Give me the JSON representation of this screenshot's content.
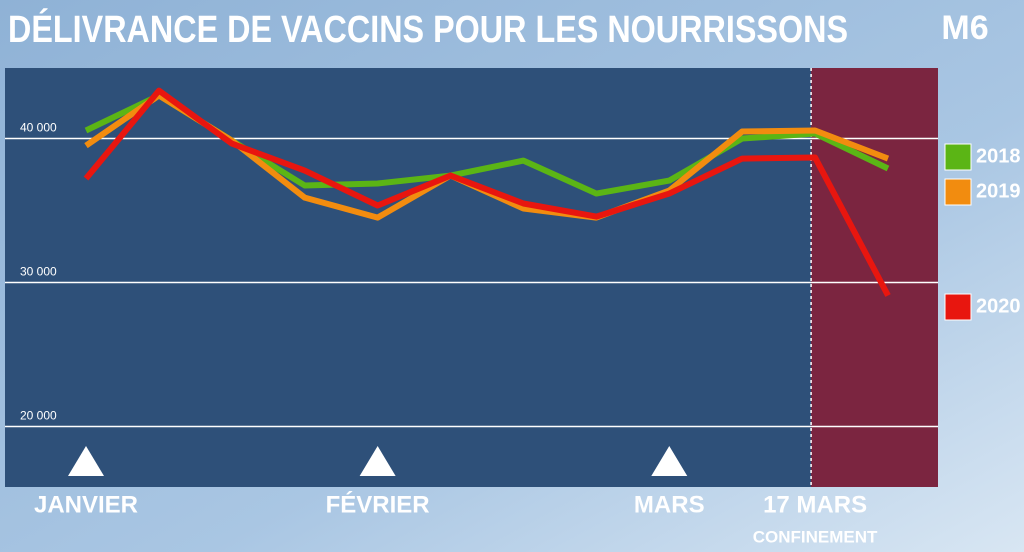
{
  "chart_data": {
    "type": "line",
    "title": "DÉLIVRANCE DE VACCINS POUR LES NOURRISSONS",
    "logo": "M6",
    "categories": [
      "JANVIER",
      null,
      null,
      null,
      "FÉVRIER",
      null,
      null,
      null,
      "MARS",
      null,
      "17 MARS",
      null
    ],
    "series": [
      {
        "name": "2018",
        "color": "#5bb515",
        "values": [
          40560,
          42990,
          39860,
          36740,
          36880,
          37430,
          38470,
          36180,
          37080,
          40000,
          40350,
          37920
        ]
      },
      {
        "name": "2019",
        "color": "#f28c0f",
        "values": [
          39510,
          42990,
          39860,
          35900,
          34510,
          37430,
          35140,
          34510,
          36390,
          40490,
          40560,
          38610
        ]
      },
      {
        "name": "2020",
        "color": "#e8160f",
        "values": [
          37220,
          43330,
          39650,
          37780,
          35350,
          37430,
          35490,
          34580,
          36180,
          38610,
          38680,
          29100
        ]
      }
    ],
    "highlight": {
      "from": "17 MARS",
      "label": "CONFINEMENT",
      "color": "#7b2540"
    },
    "ylim": [
      15800,
      44900
    ],
    "yticks": [
      {
        "value": 20000,
        "label": "20 000"
      },
      {
        "value": 30000,
        "label": "30 000"
      },
      {
        "value": 40000,
        "label": "40 000"
      }
    ],
    "grid": true
  }
}
